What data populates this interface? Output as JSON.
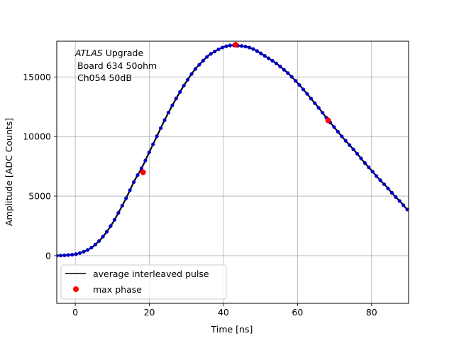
{
  "chart_data": {
    "type": "line",
    "xlabel": "Time [ns]",
    "ylabel": "Amplitude [ADC Counts]",
    "xlim": [
      -5,
      90
    ],
    "ylim": [
      -4000,
      18000
    ],
    "xticks": [
      0,
      20,
      40,
      60,
      80
    ],
    "yticks": [
      0,
      5000,
      10000,
      15000
    ],
    "grid": true,
    "annotation": {
      "line1_italic": "ATLAS",
      "line1_rest": " Upgrade",
      "line2": "Board 634 50ohm",
      "line3": "Ch054 50dB"
    },
    "legend": {
      "placement": "lower-left",
      "entries": [
        "average interleaved pulse",
        "max phase"
      ]
    },
    "series": [
      {
        "name": "average interleaved pulse",
        "color": "#000000",
        "marker_color": "#0000cc",
        "x": [
          -5,
          -2,
          0,
          2,
          4,
          6,
          8,
          10,
          12,
          14,
          16,
          18,
          20,
          22,
          24,
          26,
          28,
          30,
          32,
          34,
          36,
          38,
          40,
          42,
          44,
          46,
          48,
          50,
          52,
          54,
          56,
          58,
          60,
          62,
          64,
          66,
          68,
          70,
          72,
          74,
          76,
          78,
          80,
          82,
          84,
          86,
          88,
          90
        ],
        "y": [
          0,
          50,
          120,
          300,
          600,
          1100,
          1800,
          2700,
          3800,
          5000,
          6300,
          7400,
          8700,
          10000,
          11300,
          12500,
          13600,
          14600,
          15500,
          16200,
          16800,
          17200,
          17500,
          17650,
          17620,
          17550,
          17350,
          17000,
          16600,
          16200,
          15700,
          15150,
          14500,
          13800,
          13050,
          12300,
          11500,
          10750,
          10000,
          9300,
          8600,
          7850,
          7150,
          6450,
          5800,
          5100,
          4450,
          3800
        ]
      },
      {
        "name": "max phase",
        "color": "#ff0000",
        "x": [
          18.3,
          43.3,
          68.3
        ],
        "y": [
          7000,
          17700,
          11350
        ]
      }
    ]
  }
}
